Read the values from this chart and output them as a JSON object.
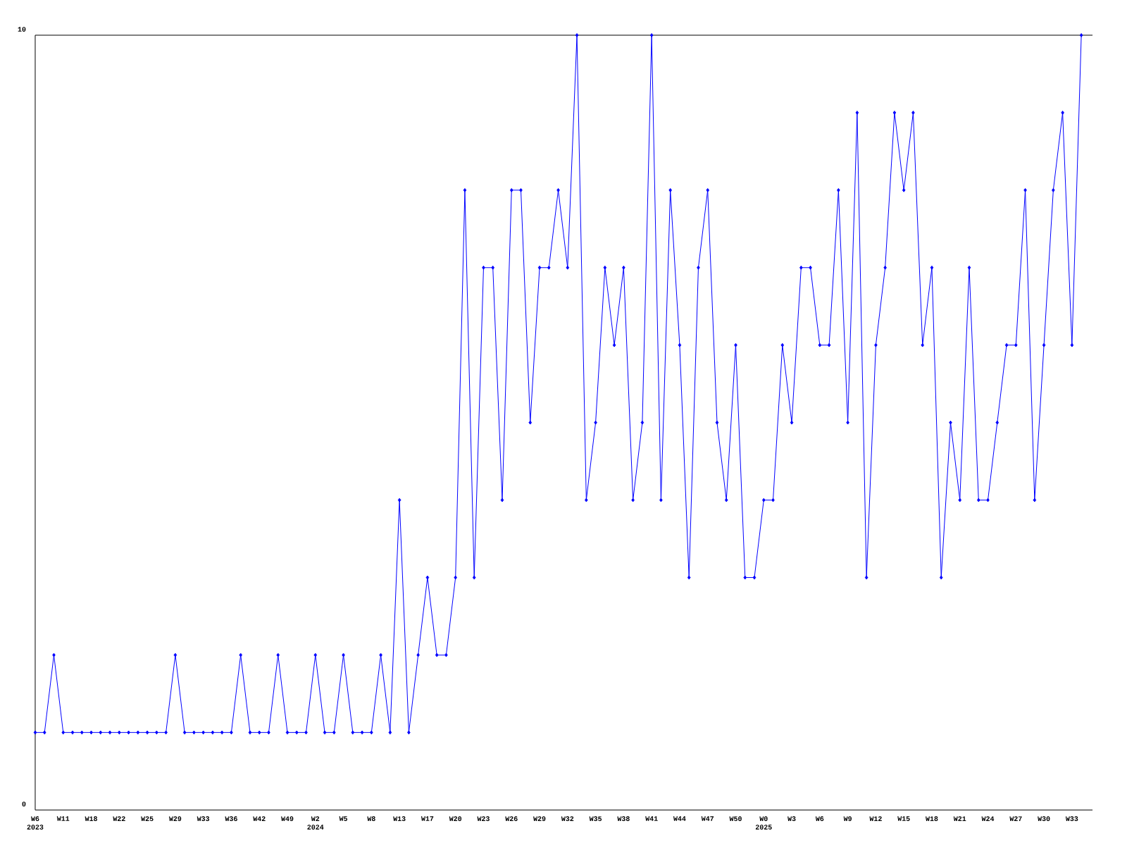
{
  "chart_data": {
    "type": "line",
    "categories": [
      "W6 2023",
      null,
      null,
      "W11",
      null,
      null,
      "W18",
      null,
      null,
      "W22",
      null,
      null,
      "W25",
      null,
      null,
      "W29",
      null,
      null,
      "W33",
      null,
      null,
      "W36",
      null,
      null,
      "W42",
      null,
      null,
      "W49",
      null,
      null,
      "W2 2024",
      null,
      null,
      "W5",
      null,
      null,
      "W8",
      null,
      null,
      "W13",
      null,
      null,
      "W17",
      null,
      null,
      "W20",
      null,
      null,
      "W23",
      null,
      null,
      "W26",
      null,
      null,
      "W29",
      null,
      null,
      "W32",
      null,
      null,
      "W35",
      null,
      null,
      "W38",
      null,
      null,
      "W41",
      null,
      null,
      "W44",
      null,
      null,
      "W47",
      null,
      null,
      "W50",
      null,
      null,
      "W0 2025",
      null,
      null,
      "W3",
      null,
      null,
      "W6",
      null,
      null,
      "W9",
      null,
      null,
      "W12",
      null,
      null,
      "W15",
      null,
      null,
      "W18",
      null,
      null,
      "W21",
      null,
      null,
      "W24",
      null,
      null,
      "W27",
      null,
      null,
      "W30",
      null,
      null,
      "W33",
      null
    ],
    "values": [
      1,
      1,
      2,
      1,
      1,
      1,
      1,
      1,
      1,
      1,
      1,
      1,
      1,
      1,
      1,
      2,
      1,
      1,
      1,
      1,
      1,
      1,
      2,
      1,
      1,
      1,
      2,
      1,
      1,
      1,
      2,
      1,
      1,
      2,
      1,
      1,
      1,
      2,
      1,
      4,
      1,
      2,
      3,
      2,
      2,
      3,
      8,
      3,
      7,
      7,
      4,
      8,
      8,
      5,
      7,
      7,
      8,
      7,
      10,
      4,
      5,
      7,
      6,
      7,
      4,
      5,
      10,
      4,
      8,
      6,
      3,
      7,
      8,
      5,
      4,
      6,
      3,
      3,
      4,
      4,
      6,
      5,
      7,
      7,
      6,
      6,
      8,
      5,
      9,
      3,
      6,
      7,
      9,
      8,
      9,
      6,
      7,
      3,
      5,
      4,
      7,
      4,
      4,
      5,
      6,
      6,
      8,
      4,
      6,
      8,
      9,
      6,
      10
    ],
    "color": "#0000ff",
    "marker": "diamond",
    "line_style": "solid",
    "ylim": [
      0,
      10
    ],
    "yticks": [
      0,
      10
    ]
  }
}
